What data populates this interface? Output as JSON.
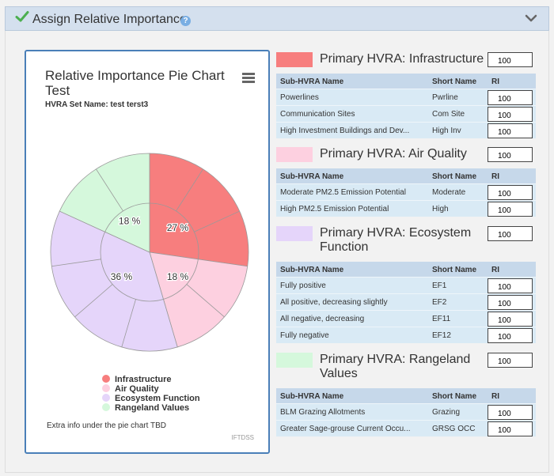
{
  "header": {
    "title": "Assign Relative Importance",
    "help": "?"
  },
  "chart": {
    "title": "Relative Importance Pie Chart Test",
    "subtitle": "HVRA Set Name: test terst3",
    "extra_info": "Extra info under the pie chart TBD",
    "credit": "IFTDSS"
  },
  "chart_data": {
    "type": "pie",
    "title": "Relative Importance Pie Chart Test",
    "slices": [
      {
        "name": "Infrastructure",
        "percent": 27,
        "label": "27 %",
        "color": "#f77e7e",
        "sub_slices": 3
      },
      {
        "name": "Air Quality",
        "percent": 18,
        "label": "18 %",
        "color": "#fdd0e0",
        "sub_slices": 2
      },
      {
        "name": "Ecosystem Function",
        "percent": 36,
        "label": "36 %",
        "color": "#e5d5fa",
        "sub_slices": 4
      },
      {
        "name": "Rangeland Values",
        "percent": 18,
        "label": "18 %",
        "color": "#d5f8dc",
        "sub_slices": 2
      }
    ],
    "legend_position": "bottom"
  },
  "columns": {
    "name": "Sub-HVRA Name",
    "short": "Short Name",
    "ri": "RI"
  },
  "groups": [
    {
      "title": "Primary HVRA: Infrastructure",
      "color": "#f77e7e",
      "ri": "100",
      "rows": [
        {
          "name": "Powerlines",
          "short": "Pwrline",
          "ri": "100"
        },
        {
          "name": "Communication Sites",
          "short": "Com Site",
          "ri": "100"
        },
        {
          "name": "High Investment Buildings and Dev...",
          "short": "High Inv",
          "ri": "100"
        }
      ]
    },
    {
      "title": "Primary HVRA: Air Quality",
      "color": "#fdd0e0",
      "ri": "100",
      "rows": [
        {
          "name": "Moderate PM2.5 Emission Potential",
          "short": "Moderate",
          "ri": "100"
        },
        {
          "name": "High PM2.5 Emission Potential",
          "short": "High",
          "ri": "100"
        }
      ]
    },
    {
      "title": "Primary HVRA: Ecosystem Function",
      "color": "#e5d5fa",
      "ri": "100",
      "rows": [
        {
          "name": "Fully positive",
          "short": "EF1",
          "ri": "100"
        },
        {
          "name": "All positive, decreasing slightly",
          "short": "EF2",
          "ri": "100"
        },
        {
          "name": "All negative, decreasing",
          "short": "EF11",
          "ri": "100"
        },
        {
          "name": "Fully negative",
          "short": "EF12",
          "ri": "100"
        }
      ]
    },
    {
      "title": "Primary HVRA: Rangeland Values",
      "color": "#d5f8dc",
      "ri": "100",
      "rows": [
        {
          "name": "BLM Grazing Allotments",
          "short": "Grazing",
          "ri": "100"
        },
        {
          "name": "Greater Sage-grouse Current Occu...",
          "short": "GRSG OCC",
          "ri": "100"
        }
      ]
    }
  ]
}
